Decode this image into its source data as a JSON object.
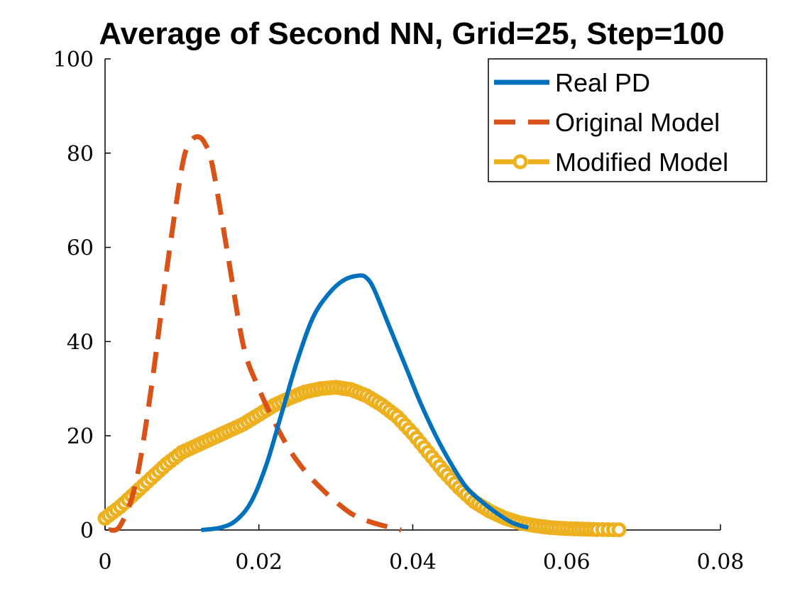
{
  "chart_data": {
    "type": "line",
    "title": "Average of Second NN, Grid=25, Step=100",
    "xlabel": "",
    "ylabel": "",
    "xlim": [
      0,
      0.08
    ],
    "ylim": [
      0,
      100
    ],
    "xticks": [
      0,
      0.02,
      0.04,
      0.06,
      0.08
    ],
    "xtick_labels": [
      "0",
      "0.02",
      "0.04",
      "0.06",
      "0.08"
    ],
    "yticks": [
      0,
      20,
      40,
      60,
      80,
      100
    ],
    "ytick_labels": [
      "0",
      "20",
      "40",
      "60",
      "80",
      "100"
    ],
    "grid": false,
    "legend_position": "top-right",
    "series": [
      {
        "name": "Real PD",
        "color": "#0072bd",
        "style": "solid",
        "x": [
          0.0125,
          0.015,
          0.017,
          0.019,
          0.021,
          0.023,
          0.025,
          0.027,
          0.029,
          0.031,
          0.033,
          0.034,
          0.035,
          0.037,
          0.039,
          0.041,
          0.043,
          0.045,
          0.047,
          0.049,
          0.051,
          0.053,
          0.055
        ],
        "y": [
          0,
          0.5,
          2,
          6,
          14,
          25,
          36,
          45,
          50,
          53,
          54,
          53.5,
          51,
          43,
          35,
          27,
          20,
          14,
          9,
          6,
          3.5,
          1.5,
          0.5
        ]
      },
      {
        "name": "Original Model",
        "color": "#d95319",
        "style": "dashed",
        "x": [
          0.0005,
          0.002,
          0.004,
          0.006,
          0.008,
          0.01,
          0.011,
          0.012,
          0.013,
          0.014,
          0.016,
          0.018,
          0.02,
          0.022,
          0.024,
          0.026,
          0.028,
          0.03,
          0.032,
          0.034,
          0.036,
          0.0385
        ],
        "y": [
          0,
          1,
          10,
          30,
          55,
          77,
          82,
          83.5,
          82,
          77,
          58,
          39,
          30,
          23,
          17,
          12.5,
          9,
          6,
          3.5,
          2,
          1,
          0
        ]
      },
      {
        "name": "Modified Model",
        "color": "#edb120",
        "style": "dashed-circle-markers",
        "x": [
          0,
          0.002,
          0.004,
          0.006,
          0.008,
          0.01,
          0.012,
          0.014,
          0.016,
          0.018,
          0.02,
          0.022,
          0.024,
          0.026,
          0.028,
          0.03,
          0.032,
          0.034,
          0.036,
          0.038,
          0.04,
          0.042,
          0.044,
          0.046,
          0.048,
          0.05,
          0.052,
          0.054,
          0.056,
          0.058,
          0.06,
          0.062,
          0.064,
          0.0668
        ],
        "y": [
          2.5,
          5,
          8,
          11,
          14,
          16.5,
          18,
          19.5,
          21,
          22.5,
          24.5,
          26.5,
          28,
          29.3,
          30,
          30.3,
          29.8,
          28.5,
          26.5,
          24,
          20.5,
          16.5,
          12.5,
          9,
          6,
          4,
          2.5,
          1.5,
          0.9,
          0.5,
          0.3,
          0.2,
          0.1,
          0.05
        ]
      }
    ]
  }
}
